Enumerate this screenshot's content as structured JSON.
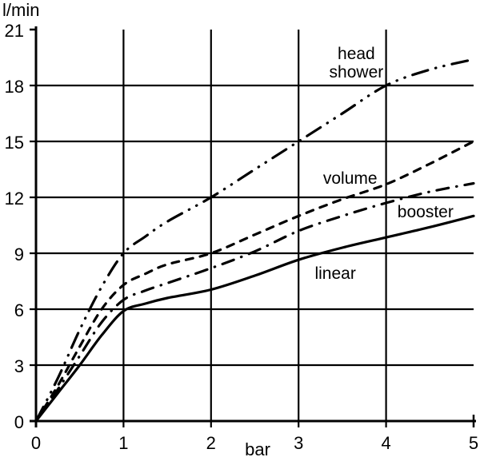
{
  "chart_data": {
    "type": "line",
    "title": "",
    "xlabel": "bar",
    "ylabel": "l/min",
    "xlim": [
      0,
      5
    ],
    "ylim": [
      0,
      21
    ],
    "xticks": [
      0,
      1,
      2,
      3,
      4,
      5
    ],
    "yticks": [
      0,
      3,
      6,
      9,
      12,
      15,
      18,
      21
    ],
    "grid": true,
    "legend_position": "inline-annotations",
    "line_color": "#000000",
    "background_color": "#ffffff",
    "series": [
      {
        "name": "head shower",
        "line_style": "dash-dot-dot",
        "color": "#000000",
        "x": [
          0,
          0.25,
          0.5,
          0.75,
          1,
          1.25,
          1.5,
          2,
          2.5,
          3,
          3.5,
          4,
          4.5,
          5
        ],
        "y": [
          0,
          2.3,
          4.9,
          7.2,
          9.0,
          9.9,
          10.7,
          12.0,
          13.5,
          15.0,
          16.5,
          18.0,
          18.85,
          19.4
        ]
      },
      {
        "name": "volume",
        "line_style": "dashed",
        "color": "#000000",
        "x": [
          0,
          0.25,
          0.5,
          0.75,
          1,
          1.25,
          1.5,
          2,
          2.5,
          3,
          3.5,
          4,
          4.5,
          5
        ],
        "y": [
          0,
          1.9,
          4.0,
          6.0,
          7.3,
          7.9,
          8.4,
          9.0,
          10.0,
          11.0,
          11.9,
          12.7,
          13.8,
          15.0
        ]
      },
      {
        "name": "booster",
        "line_style": "dash-dot",
        "color": "#000000",
        "x": [
          0,
          0.25,
          0.5,
          0.75,
          1,
          1.25,
          1.5,
          2,
          2.5,
          3,
          3.5,
          4,
          4.5,
          5
        ],
        "y": [
          0,
          1.7,
          3.5,
          5.3,
          6.5,
          7.0,
          7.4,
          8.2,
          9.1,
          10.2,
          11.0,
          11.7,
          12.3,
          12.75
        ]
      },
      {
        "name": "linear",
        "line_style": "solid",
        "color": "#000000",
        "x": [
          0,
          0.25,
          0.5,
          0.75,
          1,
          1.25,
          1.5,
          2,
          2.5,
          3,
          3.5,
          4,
          4.5,
          5
        ],
        "y": [
          0,
          1.5,
          3.0,
          4.6,
          5.9,
          6.3,
          6.6,
          7.05,
          7.8,
          8.65,
          9.3,
          9.85,
          10.4,
          11.0
        ]
      }
    ],
    "annotations": [
      {
        "name": "head-shower",
        "lines": [
          "head",
          "shower"
        ],
        "x": 3.66,
        "y": 20.2
      },
      {
        "name": "volume",
        "lines": [
          "volume"
        ],
        "x": 3.59,
        "y": 13.5
      },
      {
        "name": "booster",
        "lines": [
          "booster"
        ],
        "x": 4.45,
        "y": 11.7
      },
      {
        "name": "linear",
        "lines": [
          "linear"
        ],
        "x": 3.42,
        "y": 8.4
      }
    ]
  }
}
